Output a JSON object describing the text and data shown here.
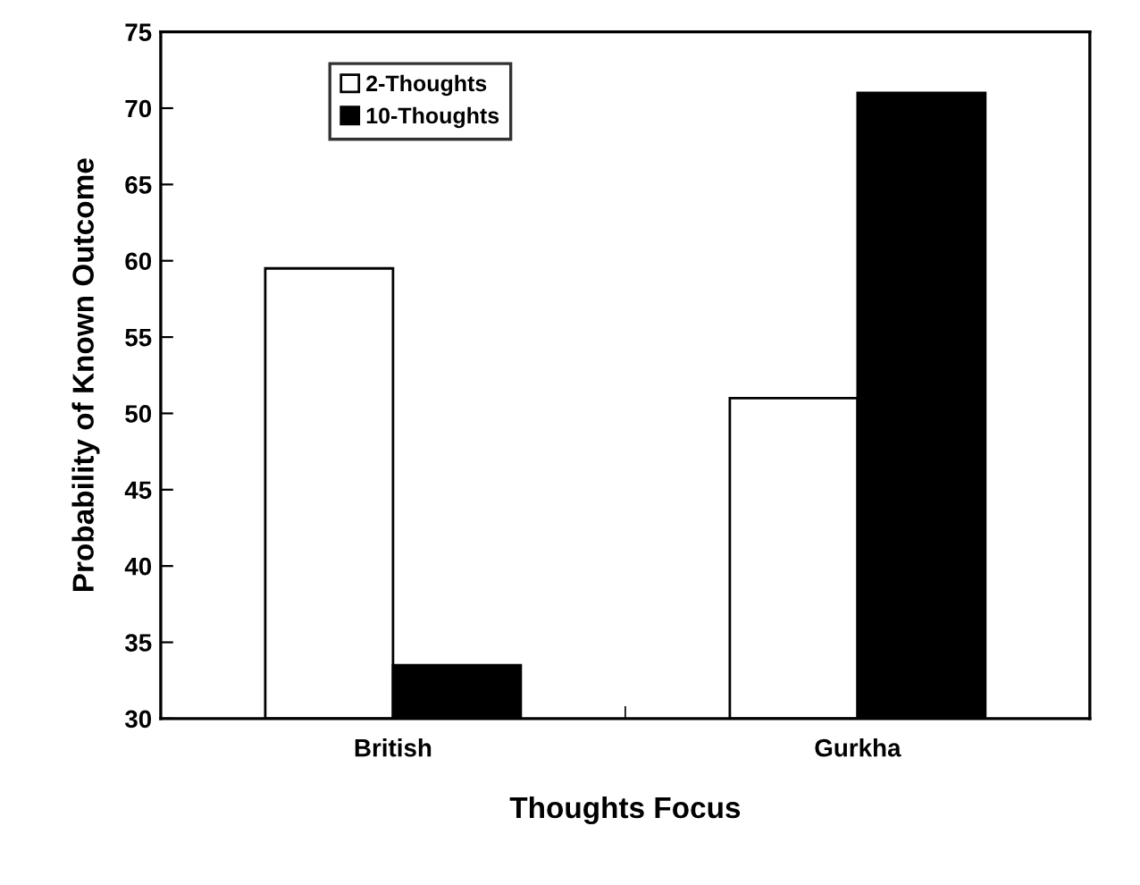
{
  "chart_data": {
    "type": "bar",
    "xlabel": "Thoughts Focus",
    "ylabel": "Probability of Known Outcome",
    "categories": [
      "British",
      "Gurkha"
    ],
    "series": [
      {
        "name": "2-Thoughts",
        "color": "#ffffff",
        "values": [
          59.5,
          51
        ]
      },
      {
        "name": "10-Thoughts",
        "color": "#000000",
        "values": [
          33.5,
          71
        ]
      }
    ],
    "ylim": [
      30,
      75
    ],
    "yticks": [
      30,
      35,
      40,
      45,
      50,
      55,
      60,
      65,
      70,
      75
    ],
    "grid": false,
    "legend": "top left"
  }
}
